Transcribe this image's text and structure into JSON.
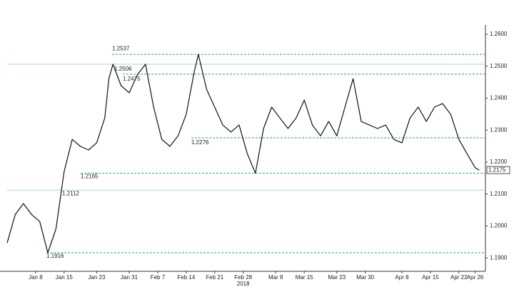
{
  "chart_data": {
    "type": "line",
    "x": [
      "2018-01-01",
      "2018-01-03",
      "2018-01-05",
      "2018-01-07",
      "2018-01-09",
      "2018-01-11",
      "2018-01-13",
      "2018-01-15",
      "2018-01-17",
      "2018-01-19",
      "2018-01-21",
      "2018-01-23",
      "2018-01-25",
      "2018-01-26",
      "2018-01-27",
      "2018-01-29",
      "2018-01-31",
      "2018-02-02",
      "2018-02-04",
      "2018-02-06",
      "2018-02-08",
      "2018-02-10",
      "2018-02-12",
      "2018-02-14",
      "2018-02-16",
      "2018-02-17",
      "2018-02-19",
      "2018-02-21",
      "2018-02-23",
      "2018-02-25",
      "2018-02-27",
      "2018-03-01",
      "2018-03-03",
      "2018-03-05",
      "2018-03-07",
      "2018-03-09",
      "2018-03-11",
      "2018-03-13",
      "2018-03-15",
      "2018-03-17",
      "2018-03-19",
      "2018-03-21",
      "2018-03-23",
      "2018-03-25",
      "2018-03-27",
      "2018-03-29",
      "2018-03-31",
      "2018-04-02",
      "2018-04-04",
      "2018-04-06",
      "2018-04-08",
      "2018-04-10",
      "2018-04-12",
      "2018-04-14",
      "2018-04-16",
      "2018-04-18",
      "2018-04-20",
      "2018-04-22",
      "2018-04-24",
      "2018-04-26",
      "2018-04-27"
    ],
    "series": [
      {
        "color": "#111111",
        "values": [
          1.1947,
          1.2036,
          1.207,
          1.2036,
          1.2014,
          1.1916,
          1.1991,
          1.217,
          1.2271,
          1.2249,
          1.2238,
          1.226,
          1.2338,
          1.2461,
          1.2506,
          1.2439,
          1.2417,
          1.2473,
          1.2506,
          1.2372,
          1.2271,
          1.2249,
          1.2282,
          1.2349,
          1.2484,
          1.2537,
          1.2428,
          1.2372,
          1.2316,
          1.2294,
          1.2316,
          1.2226,
          1.2165,
          1.2305,
          1.2372,
          1.2338,
          1.2305,
          1.2338,
          1.2394,
          1.2316,
          1.2282,
          1.2327,
          1.2282,
          1.2372,
          1.2461,
          1.2327,
          1.2316,
          1.2305,
          1.2316,
          1.2271,
          1.226,
          1.2338,
          1.2372,
          1.2327,
          1.2372,
          1.2383,
          1.2349,
          1.2271,
          1.2226,
          1.2182,
          1.2175
        ]
      }
    ],
    "levels": [
      {
        "value": 1.2537,
        "dashed": true,
        "color": "#2e9e86"
      },
      {
        "value": 1.2506,
        "dashed": false,
        "color": "#a9d9cf"
      },
      {
        "value": 1.2475,
        "dashed": true,
        "color": "#2e9e86"
      },
      {
        "value": 1.2276,
        "dashed": true,
        "color": "#2e9e86"
      },
      {
        "value": 1.2165,
        "dashed": true,
        "color": "#2e9e86"
      },
      {
        "value": 1.2112,
        "dashed": false,
        "color": "#a9d9cf"
      },
      {
        "value": 1.1916,
        "dashed": true,
        "color": "#2e9e86"
      }
    ],
    "xlim": [
      "2018-01-01",
      "2018-04-28"
    ],
    "xticks": [
      {
        "value": "2018-01-08",
        "label": "Jan 8"
      },
      {
        "value": "2018-01-15",
        "label": "Jan 15"
      },
      {
        "value": "2018-01-23",
        "label": "Jan 23"
      },
      {
        "value": "2018-01-31",
        "label": "Jan 31"
      },
      {
        "value": "2018-02-07",
        "label": "Feb 7"
      },
      {
        "value": "2018-02-14",
        "label": "Feb 14"
      },
      {
        "value": "2018-02-21",
        "label": "Feb 21"
      },
      {
        "value": "2018-02-28",
        "label": "Feb 28"
      },
      {
        "value": "2018-03-08",
        "label": "Mar 8"
      },
      {
        "value": "2018-03-15",
        "label": "Mar 15"
      },
      {
        "value": "2018-03-23",
        "label": "Mar 23"
      },
      {
        "value": "2018-03-30",
        "label": "Mar 30"
      },
      {
        "value": "2018-04-08",
        "label": "Apr 8"
      },
      {
        "value": "2018-04-15",
        "label": "Apr 15"
      },
      {
        "value": "2018-04-22",
        "label": "Apr 22"
      },
      {
        "value": "2018-04-26",
        "label": "Apr 26"
      }
    ],
    "year_label": "2018",
    "ylim": [
      1.1858,
      1.2629
    ],
    "yticks": [
      {
        "value": 1.19,
        "label": "1.1900"
      },
      {
        "value": 1.2,
        "label": "1.2000"
      },
      {
        "value": 1.21,
        "label": "1.2100"
      },
      {
        "value": 1.22,
        "label": "1.2200"
      },
      {
        "value": 1.23,
        "label": "1.2300"
      },
      {
        "value": 1.24,
        "label": "1.2400"
      },
      {
        "value": 1.25,
        "label": "1.2500"
      },
      {
        "value": 1.26,
        "label": "1.2600"
      }
    ]
  }
}
